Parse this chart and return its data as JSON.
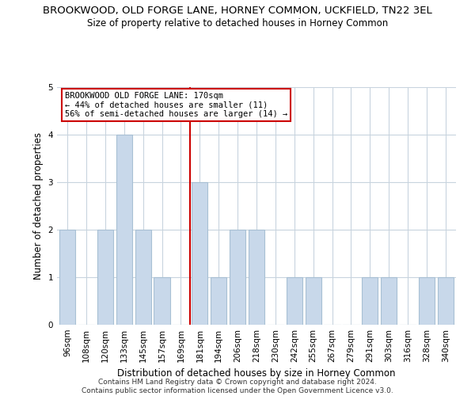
{
  "title": "BROOKWOOD, OLD FORGE LANE, HORNEY COMMON, UCKFIELD, TN22 3EL",
  "subtitle": "Size of property relative to detached houses in Horney Common",
  "xlabel": "Distribution of detached houses by size in Horney Common",
  "ylabel": "Number of detached properties",
  "footer_line1": "Contains HM Land Registry data © Crown copyright and database right 2024.",
  "footer_line2": "Contains public sector information licensed under the Open Government Licence v3.0.",
  "bin_labels": [
    "96sqm",
    "108sqm",
    "120sqm",
    "133sqm",
    "145sqm",
    "157sqm",
    "169sqm",
    "181sqm",
    "194sqm",
    "206sqm",
    "218sqm",
    "230sqm",
    "242sqm",
    "255sqm",
    "267sqm",
    "279sqm",
    "291sqm",
    "303sqm",
    "316sqm",
    "328sqm",
    "340sqm"
  ],
  "bar_values": [
    2,
    0,
    2,
    4,
    2,
    1,
    0,
    3,
    1,
    2,
    2,
    0,
    1,
    1,
    0,
    0,
    1,
    1,
    0,
    1,
    1
  ],
  "bar_color": "#c8d8ea",
  "bar_edgecolor": "#a8c0d4",
  "ref_line_x": 6.5,
  "ref_line_color": "#cc0000",
  "annotation_text": "BROOKWOOD OLD FORGE LANE: 170sqm\n← 44% of detached houses are smaller (11)\n56% of semi-detached houses are larger (14) →",
  "annotation_box_edgecolor": "#cc0000",
  "ylim": [
    0,
    5
  ],
  "yticks": [
    0,
    1,
    2,
    3,
    4,
    5
  ],
  "background_color": "#ffffff",
  "grid_color": "#c8d4de",
  "title_fontsize": 9.5,
  "subtitle_fontsize": 8.5,
  "xlabel_fontsize": 8.5,
  "ylabel_fontsize": 8.5,
  "tick_fontsize": 7.5,
  "footer_fontsize": 6.5
}
